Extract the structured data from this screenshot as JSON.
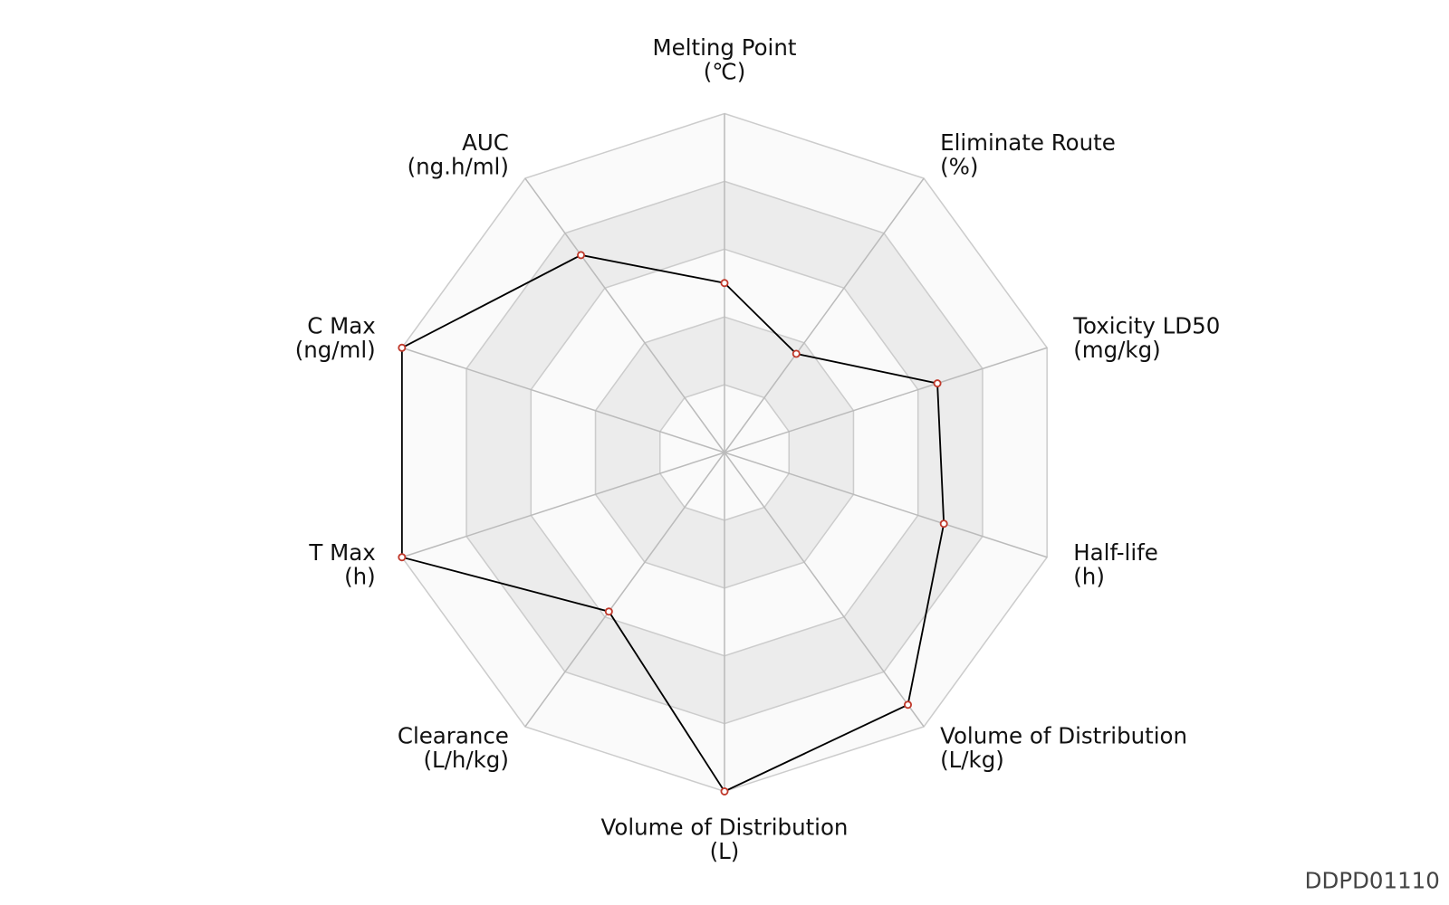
{
  "chart_data": {
    "type": "radar",
    "categories": [
      "Melting Point",
      "Eliminate Route",
      "Toxicity LD50",
      "Half-life",
      "Volume of Distribution",
      "Volume of Distribution",
      "Clearance",
      "T Max",
      "C Max",
      "AUC"
    ],
    "units": [
      "(℃)",
      "(%)",
      "(mg/kg)",
      "(h)",
      "(L/kg)",
      "(L)",
      "(L/h/kg)",
      "(h)",
      "(ng/ml)",
      "(ng.h/ml)"
    ],
    "values": [
      2.5,
      1.8,
      3.3,
      3.4,
      4.6,
      5,
      2.9,
      5,
      5,
      3.6
    ],
    "color": "#000000",
    "marker_color": "#c0392b",
    "ylim": [
      0,
      5
    ],
    "yticks": [
      0,
      1,
      2,
      3,
      4,
      5
    ],
    "grid": true,
    "footer": "DDPD01110"
  }
}
